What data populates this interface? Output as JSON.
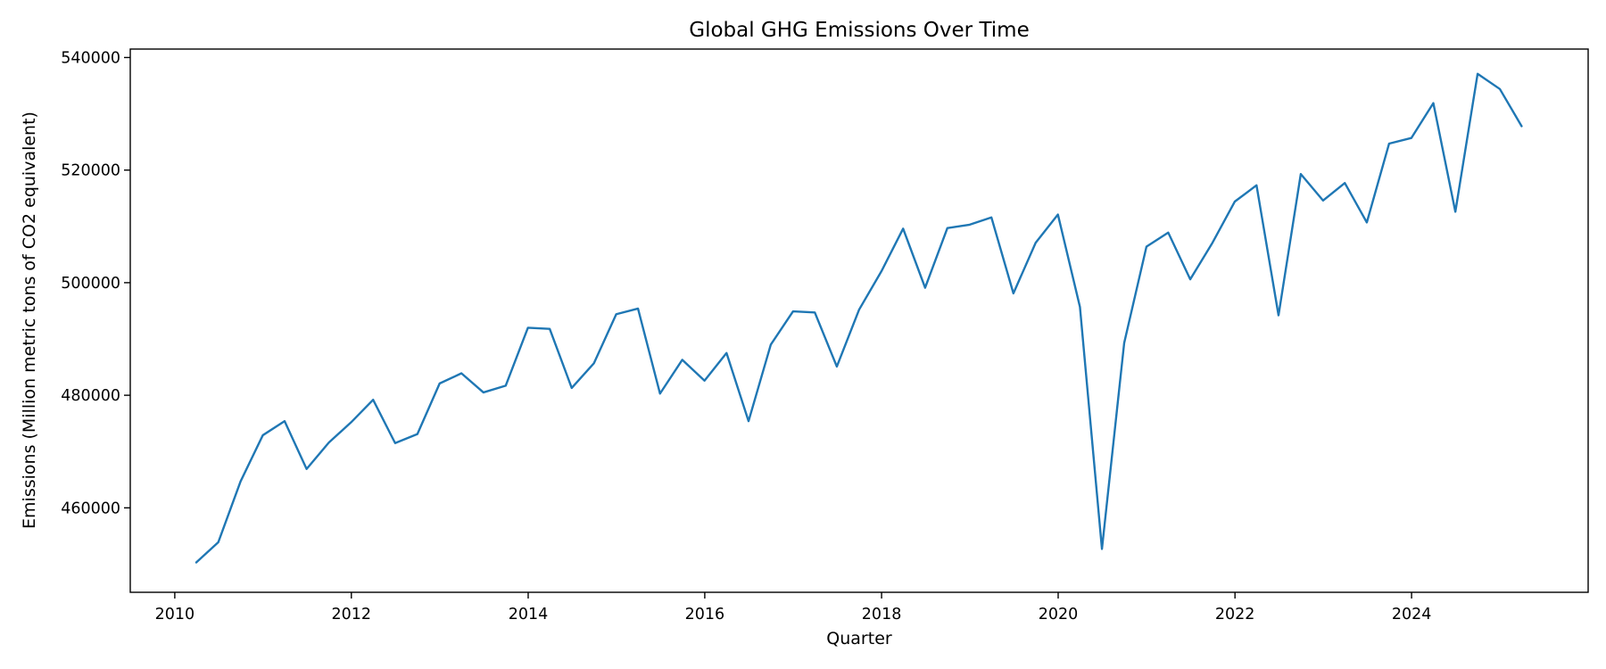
{
  "chart_data": {
    "type": "line",
    "title": "Global GHG Emissions Over Time",
    "xlabel": "Quarter",
    "ylabel": "Emissions (Million metric tons of CO2 equivalent)",
    "x_ticks": [
      "2010",
      "2012",
      "2014",
      "2016",
      "2018",
      "2020",
      "2022",
      "2024"
    ],
    "y_ticks": [
      "460000",
      "480000",
      "500000",
      "520000",
      "540000"
    ],
    "xlim": [
      "2009-07-01",
      "2025-12-31"
    ],
    "ylim": [
      445000,
      541500
    ],
    "grid": false,
    "legend": "none",
    "color": "#1f77b4",
    "series": [
      {
        "x": [
          "2010-03-31",
          "2010-06-30",
          "2010-09-30",
          "2010-12-31",
          "2011-03-31",
          "2011-06-30",
          "2011-09-30",
          "2011-12-31",
          "2012-03-31",
          "2012-06-30",
          "2012-09-30",
          "2012-12-31",
          "2013-03-31",
          "2013-06-30",
          "2013-09-30",
          "2013-12-31",
          "2014-03-31",
          "2014-06-30",
          "2014-09-30",
          "2014-12-31",
          "2015-03-31",
          "2015-06-30",
          "2015-09-30",
          "2015-12-31",
          "2016-03-31",
          "2016-06-30",
          "2016-09-30",
          "2016-12-31",
          "2017-03-31",
          "2017-06-30",
          "2017-09-30",
          "2017-12-31",
          "2018-03-31",
          "2018-06-30",
          "2018-09-30",
          "2018-12-31",
          "2019-03-31",
          "2019-06-30",
          "2019-09-30",
          "2019-12-31",
          "2020-03-31",
          "2020-06-30",
          "2020-09-30",
          "2020-12-31",
          "2021-03-31",
          "2021-06-30",
          "2021-09-30",
          "2021-12-31",
          "2022-03-31",
          "2022-06-30",
          "2022-09-30",
          "2022-12-31",
          "2023-03-31",
          "2023-06-30",
          "2023-09-30",
          "2023-12-31",
          "2024-03-31",
          "2024-06-30",
          "2024-09-30",
          "2024-12-31",
          "2025-03-31"
        ],
        "values": [
          450300,
          453900,
          464700,
          472900,
          475400,
          466900,
          471600,
          475200,
          479200,
          471500,
          473100,
          482100,
          483900,
          480500,
          481700,
          492000,
          491800,
          481300,
          485700,
          494400,
          495400,
          480300,
          486300,
          482600,
          487500,
          475400,
          489000,
          494900,
          494700,
          485100,
          495200,
          502000,
          509600,
          499100,
          509700,
          510300,
          511600,
          498100,
          507100,
          512100,
          495700,
          452700,
          489300,
          506400,
          508900,
          500600,
          507100,
          514400,
          517300,
          494200,
          519300,
          514600,
          517700,
          510700,
          524700,
          525700,
          531900,
          512600,
          537100,
          534400,
          527800
        ]
      }
    ]
  }
}
